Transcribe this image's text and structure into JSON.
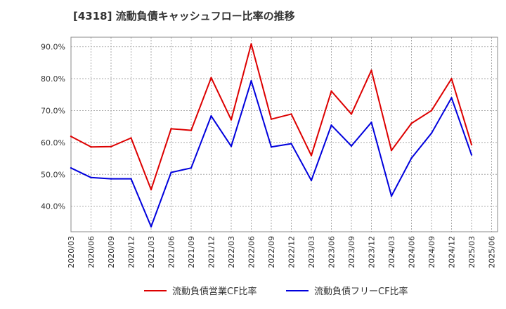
{
  "chart_data": {
    "type": "line",
    "title": "[4318]  流動負債キャッシュフロー比率の推移",
    "x": [
      "2020/03",
      "2020/06",
      "2020/09",
      "2020/12",
      "2021/03",
      "2021/06",
      "2021/09",
      "2021/12",
      "2022/03",
      "2022/06",
      "2022/09",
      "2022/12",
      "2023/03",
      "2023/06",
      "2023/09",
      "2023/12",
      "2024/03",
      "2024/06",
      "2024/09",
      "2024/12",
      "2025/03"
    ],
    "x_ticks": [
      "2020/03",
      "2020/06",
      "2020/09",
      "2020/12",
      "2021/03",
      "2021/06",
      "2021/09",
      "2021/12",
      "2022/03",
      "2022/06",
      "2022/09",
      "2022/12",
      "2023/03",
      "2023/06",
      "2023/09",
      "2023/12",
      "2024/03",
      "2024/06",
      "2024/09",
      "2024/12",
      "2025/03",
      "2025/06"
    ],
    "y_ticks": [
      "40.0%",
      "50.0%",
      "60.0%",
      "70.0%",
      "80.0%",
      "90.0%"
    ],
    "ylim": [
      32,
      93
    ],
    "grid": true,
    "legend_position": "bottom",
    "series": [
      {
        "name": "流動負債営業CF比率",
        "color": "#dd0000",
        "values": [
          61.9,
          58.6,
          58.7,
          61.4,
          45.2,
          64.3,
          63.8,
          80.3,
          67.1,
          90.9,
          67.3,
          68.9,
          55.9,
          76.1,
          68.9,
          82.6,
          57.5,
          66.0,
          70.0,
          80.0,
          59.3
        ]
      },
      {
        "name": "流動負債フリーCF比率",
        "color": "#0000dd",
        "values": [
          52.0,
          49.0,
          48.6,
          48.6,
          33.6,
          50.6,
          52.0,
          68.3,
          58.8,
          79.3,
          58.6,
          59.6,
          48.1,
          65.4,
          58.9,
          66.3,
          43.2,
          55.1,
          62.9,
          74.0,
          56.1
        ]
      }
    ]
  }
}
